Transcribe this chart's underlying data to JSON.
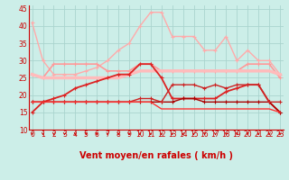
{
  "xlabel": "Vent moyen/en rafales ( km/h )",
  "background_color": "#cceee8",
  "grid_color": "#aad4ce",
  "x": [
    0,
    1,
    2,
    3,
    4,
    5,
    6,
    7,
    8,
    9,
    10,
    11,
    12,
    13,
    14,
    15,
    16,
    17,
    18,
    19,
    20,
    21,
    22,
    23
  ],
  "lines": [
    {
      "y": [
        41,
        30,
        26,
        26,
        26,
        27,
        28,
        30,
        33,
        35,
        40,
        44,
        44,
        37,
        37,
        37,
        33,
        33,
        37,
        30,
        33,
        30,
        30,
        26
      ],
      "color": "#ffaaaa",
      "lw": 1.0,
      "marker": "+"
    },
    {
      "y": [
        26,
        25,
        29,
        29,
        29,
        29,
        29,
        27,
        27,
        27,
        29,
        29,
        27,
        27,
        27,
        27,
        27,
        27,
        27,
        27,
        29,
        29,
        29,
        25
      ],
      "color": "#ff9999",
      "lw": 1.2,
      "marker": "+"
    },
    {
      "y": [
        26,
        25,
        25,
        25,
        25,
        25,
        25,
        25,
        25,
        26,
        27,
        27,
        27,
        27,
        27,
        27,
        27,
        27,
        27,
        27,
        27,
        27,
        27,
        26
      ],
      "color": "#ffbbbb",
      "lw": 2.5,
      "marker": null
    },
    {
      "y": [
        15,
        18,
        19,
        20,
        22,
        23,
        24,
        25,
        26,
        26,
        29,
        29,
        25,
        19,
        19,
        19,
        19,
        19,
        21,
        22,
        23,
        23,
        18,
        15
      ],
      "color": "#dd2222",
      "lw": 1.3,
      "marker": "+"
    },
    {
      "y": [
        18,
        18,
        18,
        18,
        18,
        18,
        18,
        18,
        18,
        18,
        18,
        18,
        18,
        18,
        19,
        19,
        18,
        18,
        18,
        18,
        18,
        18,
        18,
        15
      ],
      "color": "#aa0000",
      "lw": 1.0,
      "marker": "+"
    },
    {
      "y": [
        18,
        18,
        18,
        18,
        18,
        18,
        18,
        18,
        18,
        18,
        19,
        19,
        18,
        23,
        23,
        23,
        22,
        23,
        22,
        23,
        23,
        23,
        18,
        18
      ],
      "color": "#cc2222",
      "lw": 1.0,
      "marker": "+"
    },
    {
      "y": [
        18,
        18,
        18,
        18,
        18,
        18,
        18,
        18,
        18,
        18,
        18,
        18,
        16,
        16,
        16,
        16,
        16,
        16,
        16,
        16,
        16,
        16,
        16,
        15
      ],
      "color": "#ff3333",
      "lw": 1.0,
      "marker": null
    }
  ],
  "ylim": [
    10,
    46
  ],
  "yticks": [
    10,
    15,
    20,
    25,
    30,
    35,
    40,
    45
  ],
  "xticks": [
    0,
    1,
    2,
    3,
    4,
    5,
    6,
    7,
    8,
    9,
    10,
    11,
    12,
    13,
    14,
    15,
    16,
    17,
    18,
    19,
    20,
    21,
    22,
    23
  ],
  "arrow_color": "#cc0000",
  "tick_color": "#cc0000",
  "tick_fontsize": 5.5,
  "label_fontsize": 7
}
